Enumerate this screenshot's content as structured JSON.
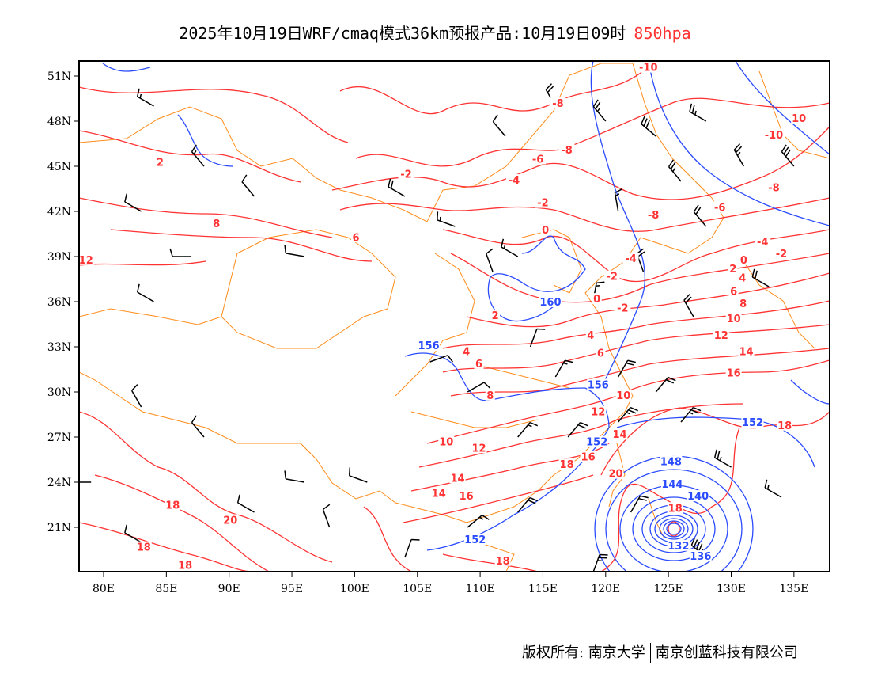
{
  "title": {
    "main": "2025年10月19日WRF/cmaq模式36km预报产品:10月19日09时",
    "level": "850hpa"
  },
  "footer": {
    "copyright": "版权所有: 南京大学",
    "company": "南京创蓝科技有限公司"
  },
  "colors": {
    "temperature": "#ff3333",
    "height": "#2b4bff",
    "boundary": "#ff8c1a",
    "wind": "#000000"
  },
  "map_data": {
    "type": "weather-map",
    "lon_range": [
      78,
      138
    ],
    "lat_range": [
      17.3,
      51.5
    ],
    "lon_ticks": [
      "80E",
      "85E",
      "90E",
      "95E",
      "100E",
      "105E",
      "110E",
      "115E",
      "120E",
      "125E",
      "130E",
      "135E"
    ],
    "lat_ticks": [
      "51N",
      "48N",
      "45N",
      "42N",
      "39N",
      "36N",
      "33N",
      "30N",
      "27N",
      "24N",
      "21N"
    ],
    "temperature_labels": [
      {
        "t": "-10",
        "lon": 123.4,
        "lat": 51.6
      },
      {
        "t": "-8",
        "lon": 116.2,
        "lat": 49.2
      },
      {
        "t": "-8",
        "lon": 116.9,
        "lat": 46.1
      },
      {
        "t": "-6",
        "lon": 114.6,
        "lat": 45.5
      },
      {
        "t": "-4",
        "lon": 112.7,
        "lat": 44.1
      },
      {
        "t": "-2",
        "lon": 104.1,
        "lat": 44.5
      },
      {
        "t": "-2",
        "lon": 115.0,
        "lat": 42.6
      },
      {
        "t": "2",
        "lon": 84.5,
        "lat": 45.3
      },
      {
        "t": "8",
        "lon": 89.0,
        "lat": 41.2
      },
      {
        "t": "6",
        "lon": 100.1,
        "lat": 40.3
      },
      {
        "t": "12",
        "lon": 78.6,
        "lat": 38.8
      },
      {
        "t": "0",
        "lon": 115.2,
        "lat": 40.8
      },
      {
        "t": "-4",
        "lon": 122.0,
        "lat": 38.9
      },
      {
        "t": "-2",
        "lon": 120.5,
        "lat": 37.7
      },
      {
        "t": "0",
        "lon": 119.3,
        "lat": 36.2
      },
      {
        "t": "-2",
        "lon": 120.1,
        "lat": 35.6
      },
      {
        "t": "2",
        "lon": 111.2,
        "lat": 35.1
      },
      {
        "t": "4",
        "lon": 118.8,
        "lat": 33.8
      },
      {
        "t": "6",
        "lon": 119.6,
        "lat": 32.6
      },
      {
        "t": "4",
        "lon": 108.9,
        "lat": 32.7
      },
      {
        "t": "6",
        "lon": 109.9,
        "lat": 31.9
      },
      {
        "t": "8",
        "lon": 110.8,
        "lat": 29.8
      },
      {
        "t": "10",
        "lon": 119.4,
        "lat": 29.8
      },
      {
        "t": "12",
        "lon": 119.4,
        "lat": 28.7
      },
      {
        "t": "14",
        "lon": 119.1,
        "lat": 27.2
      },
      {
        "t": "16",
        "lon": 118.6,
        "lat": 25.7
      },
      {
        "t": "18",
        "lon": 116.9,
        "lat": 25.2
      },
      {
        "t": "20",
        "lon": 120.8,
        "lat": 24.6
      },
      {
        "t": "18",
        "lon": 126.8,
        "lat": 22.3
      },
      {
        "t": "10",
        "lon": 107.3,
        "lat": 26.7
      },
      {
        "t": "12",
        "lon": 109.9,
        "lat": 26.3
      },
      {
        "t": "14",
        "lon": 108.2,
        "lat": 24.3
      },
      {
        "t": "16",
        "lon": 108.9,
        "lat": 23.1
      },
      {
        "t": "14",
        "lon": 106.7,
        "lat": 23.3
      },
      {
        "t": "18",
        "lon": 85.5,
        "lat": 22.5
      },
      {
        "t": "20",
        "lon": 90.1,
        "lat": 21.5
      },
      {
        "t": "18",
        "lon": 83.2,
        "lat": 19.7
      },
      {
        "t": "18",
        "lon": 86.5,
        "lat": 18.5
      },
      {
        "t": "18",
        "lon": 111.8,
        "lat": 18.8
      },
      {
        "t": "-8",
        "lon": 123.8,
        "lat": 41.8
      },
      {
        "t": "-6",
        "lon": 129.1,
        "lat": 42.3
      },
      {
        "t": "-8",
        "lon": 133.4,
        "lat": 43.6
      },
      {
        "t": "-10",
        "lon": 133.4,
        "lat": 47.1
      },
      {
        "t": "10",
        "lon": 135.4,
        "lat": 48.2
      },
      {
        "t": "-4",
        "lon": 132.5,
        "lat": 40.0
      },
      {
        "t": "-2",
        "lon": 134.0,
        "lat": 39.2
      },
      {
        "t": "0",
        "lon": 131.0,
        "lat": 38.8
      },
      {
        "t": "2",
        "lon": 130.9,
        "lat": 38.2
      },
      {
        "t": "4",
        "lon": 130.9,
        "lat": 37.6
      },
      {
        "t": "6",
        "lon": 130.2,
        "lat": 36.7
      },
      {
        "t": "8",
        "lon": 130.2,
        "lat": 35.9
      },
      {
        "t": "10",
        "lon": 130.2,
        "lat": 34.9
      },
      {
        "t": "12",
        "lon": 129.2,
        "lat": 33.8
      },
      {
        "t": "14",
        "lon": 131.2,
        "lat": 32.7
      },
      {
        "t": "16",
        "lon": 130.2,
        "lat": 31.3
      },
      {
        "t": "18",
        "lon": 133.0,
        "lat": 27.8
      }
    ],
    "height_labels": [
      {
        "t": "160",
        "lon": 115.6,
        "lat": 36.0
      },
      {
        "t": "156",
        "lon": 105.9,
        "lat": 33.1
      },
      {
        "t": "156",
        "lon": 119.4,
        "lat": 30.5
      },
      {
        "t": "152",
        "lon": 119.3,
        "lat": 26.7
      },
      {
        "t": "152",
        "lon": 131.7,
        "lat": 28.0
      },
      {
        "t": "152",
        "lon": 109.6,
        "lat": 20.2
      },
      {
        "t": "148",
        "lon": 125.2,
        "lat": 25.4
      },
      {
        "t": "144",
        "lon": 125.3,
        "lat": 23.9
      },
      {
        "t": "140",
        "lon": 125.6,
        "lat": 23.1
      },
      {
        "t": "132",
        "lon": 125.8,
        "lat": 19.8
      },
      {
        "t": "136",
        "lon": 125.8,
        "lat": 19.1
      }
    ],
    "typhoon_center": {
      "lon": 125.4,
      "lat": 20.9
    },
    "wind_barbs": [
      [
        84,
        49,
        300,
        15
      ],
      [
        88,
        45,
        320,
        15
      ],
      [
        83,
        42,
        300,
        10
      ],
      [
        92,
        43,
        320,
        10
      ],
      [
        96,
        39,
        280,
        10
      ],
      [
        87,
        39,
        270,
        10
      ],
      [
        84,
        36,
        300,
        10
      ],
      [
        104,
        43,
        300,
        20
      ],
      [
        108,
        41,
        290,
        15
      ],
      [
        111,
        38,
        340,
        10
      ],
      [
        113,
        39,
        300,
        15
      ],
      [
        112,
        47,
        320,
        10
      ],
      [
        116,
        49,
        330,
        20
      ],
      [
        120,
        48,
        320,
        25
      ],
      [
        124,
        47,
        310,
        30
      ],
      [
        128,
        48,
        300,
        25
      ],
      [
        131,
        45,
        330,
        25
      ],
      [
        135,
        45,
        320,
        30
      ],
      [
        126,
        44,
        320,
        25
      ],
      [
        121,
        42,
        350,
        15
      ],
      [
        128,
        41,
        320,
        20
      ],
      [
        133,
        37,
        300,
        20
      ],
      [
        123,
        38,
        340,
        20
      ],
      [
        127,
        35,
        330,
        20
      ],
      [
        119,
        36,
        10,
        15
      ],
      [
        114,
        33,
        20,
        10
      ],
      [
        116,
        31,
        30,
        15
      ],
      [
        121,
        31,
        30,
        20
      ],
      [
        124,
        30,
        40,
        20
      ],
      [
        109,
        30,
        60,
        10
      ],
      [
        106,
        32,
        70,
        10
      ],
      [
        113,
        27,
        40,
        15
      ],
      [
        117,
        27,
        40,
        20
      ],
      [
        121,
        28,
        40,
        25
      ],
      [
        126,
        28,
        40,
        25
      ],
      [
        130,
        25,
        300,
        25
      ],
      [
        134,
        23,
        300,
        15
      ],
      [
        128,
        19,
        310,
        45
      ],
      [
        122,
        22,
        30,
        20
      ],
      [
        119,
        18,
        20,
        25
      ],
      [
        113,
        22,
        40,
        20
      ],
      [
        109,
        21,
        50,
        15
      ],
      [
        104,
        19,
        20,
        10
      ],
      [
        98,
        21,
        340,
        10
      ],
      [
        92,
        22,
        300,
        10
      ],
      [
        83,
        20,
        300,
        10
      ],
      [
        88,
        27,
        320,
        10
      ],
      [
        96,
        24,
        280,
        10
      ],
      [
        101,
        24,
        290,
        10
      ],
      [
        79,
        24,
        270,
        10
      ],
      [
        83,
        29,
        330,
        10
      ]
    ]
  }
}
